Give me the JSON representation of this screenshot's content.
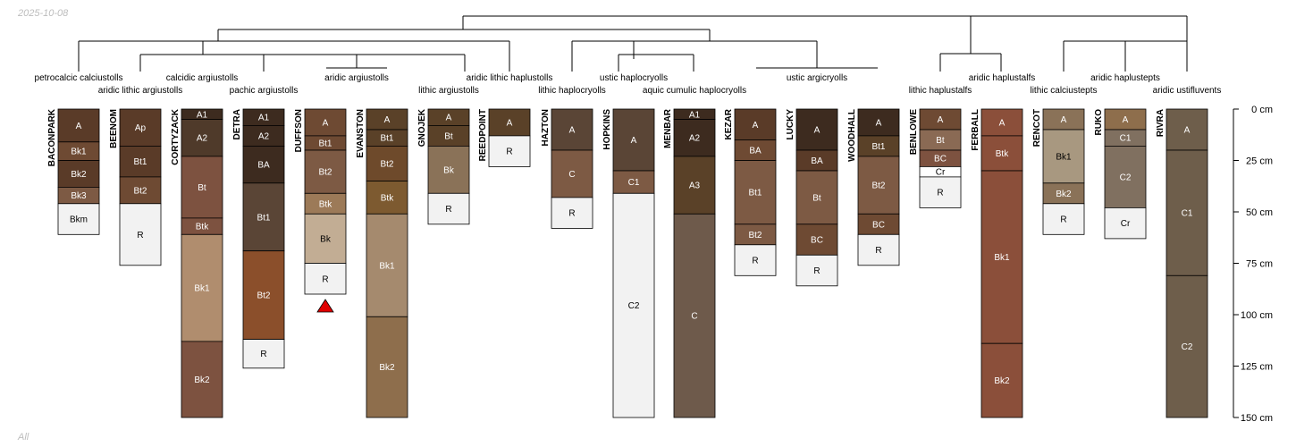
{
  "date_label": "2025-10-08",
  "footer_label": "All",
  "chart_data": {
    "type": "soil-profile-sketch",
    "depth_unit": "cm",
    "depth_axis": {
      "ticks": [
        0,
        25,
        50,
        75,
        100,
        125,
        150
      ],
      "range": [
        0,
        150
      ]
    },
    "profiles": [
      {
        "name": "BACONPARK",
        "taxon": "petrocalcic calciustolls",
        "horizons": [
          {
            "name": "A",
            "top": 0,
            "bottom": 16,
            "color": "#5a3b28"
          },
          {
            "name": "Bk1",
            "top": 16,
            "bottom": 25,
            "color": "#6e4a33"
          },
          {
            "name": "Bk2",
            "top": 25,
            "bottom": 38,
            "color": "#5a3b28"
          },
          {
            "name": "Bk3",
            "top": 38,
            "bottom": 46,
            "color": "#7d5a44"
          },
          {
            "name": "Bkm",
            "top": 46,
            "bottom": 61,
            "color": "#f2f2f2"
          }
        ]
      },
      {
        "name": "BEENOM",
        "taxon": "aridic lithic argiustolls",
        "horizons": [
          {
            "name": "Ap",
            "top": 0,
            "bottom": 18,
            "color": "#5a3b28"
          },
          {
            "name": "Bt1",
            "top": 18,
            "bottom": 33,
            "color": "#5a3b28"
          },
          {
            "name": "Bt2",
            "top": 33,
            "bottom": 46,
            "color": "#6e4a33"
          },
          {
            "name": "R",
            "top": 46,
            "bottom": 76,
            "color": "#f2f2f2"
          }
        ]
      },
      {
        "name": "CORTYZACK",
        "taxon": "calcidic argiustolls",
        "horizons": [
          {
            "name": "A1",
            "top": 0,
            "bottom": 5,
            "color": "#3d2b1f"
          },
          {
            "name": "A2",
            "top": 5,
            "bottom": 23,
            "color": "#4f3a2a"
          },
          {
            "name": "Bt",
            "top": 23,
            "bottom": 53,
            "color": "#7d5240"
          },
          {
            "name": "Btk",
            "top": 53,
            "bottom": 61,
            "color": "#7d5240"
          },
          {
            "name": "Bk1",
            "top": 61,
            "bottom": 113,
            "color": "#b08d6e"
          },
          {
            "name": "Bk2",
            "top": 113,
            "bottom": 150,
            "color": "#7d5240"
          }
        ]
      },
      {
        "name": "DETRA",
        "taxon": "pachic argiustolls",
        "horizons": [
          {
            "name": "A1",
            "top": 0,
            "bottom": 8,
            "color": "#3d2b1f"
          },
          {
            "name": "A2",
            "top": 8,
            "bottom": 18,
            "color": "#3d2b1f"
          },
          {
            "name": "BA",
            "top": 18,
            "bottom": 36,
            "color": "#3d2b1f"
          },
          {
            "name": "Bt1",
            "top": 36,
            "bottom": 69,
            "color": "#5a4536"
          },
          {
            "name": "Bt2",
            "top": 69,
            "bottom": 112,
            "color": "#8b4f2b"
          },
          {
            "name": "R",
            "top": 112,
            "bottom": 126,
            "color": "#f2f2f2"
          }
        ]
      },
      {
        "name": "DUFFSON",
        "taxon": "aridic argiustolls",
        "horizons": [
          {
            "name": "A",
            "top": 0,
            "bottom": 13,
            "color": "#6e4a33"
          },
          {
            "name": "Bt1",
            "top": 13,
            "bottom": 20,
            "color": "#6e4a33"
          },
          {
            "name": "Bt2",
            "top": 20,
            "bottom": 41,
            "color": "#7d5a44"
          },
          {
            "name": "Btk",
            "top": 41,
            "bottom": 51,
            "color": "#9c7a58"
          },
          {
            "name": "Bk",
            "top": 51,
            "bottom": 75,
            "color": "#c2ad94"
          },
          {
            "name": "R",
            "top": 75,
            "bottom": 90,
            "color": "#f2f2f2"
          }
        ]
      },
      {
        "name": "EVANSTON",
        "taxon": "aridic argiustolls",
        "horizons": [
          {
            "name": "A",
            "top": 0,
            "bottom": 10,
            "color": "#5a4128"
          },
          {
            "name": "Bt1",
            "top": 10,
            "bottom": 18,
            "color": "#5a4128"
          },
          {
            "name": "Bt2",
            "top": 18,
            "bottom": 35,
            "color": "#6e4a2b"
          },
          {
            "name": "Btk",
            "top": 35,
            "bottom": 51,
            "color": "#7d5a30"
          },
          {
            "name": "Bk1",
            "top": 51,
            "bottom": 101,
            "color": "#a58a6e"
          },
          {
            "name": "Bk2",
            "top": 101,
            "bottom": 150,
            "color": "#8e6e4c"
          }
        ]
      },
      {
        "name": "GNOJEK",
        "taxon": "lithic argiustolls",
        "horizons": [
          {
            "name": "A",
            "top": 0,
            "bottom": 8,
            "color": "#5a4128"
          },
          {
            "name": "Bt",
            "top": 8,
            "bottom": 18,
            "color": "#5a4128"
          },
          {
            "name": "Bk",
            "top": 18,
            "bottom": 41,
            "color": "#8a7258"
          },
          {
            "name": "R",
            "top": 41,
            "bottom": 56,
            "color": "#f2f2f2"
          }
        ]
      },
      {
        "name": "REEDPOINT",
        "taxon": "aridic lithic haplustolls",
        "horizons": [
          {
            "name": "A",
            "top": 0,
            "bottom": 13,
            "color": "#5a4128"
          },
          {
            "name": "R",
            "top": 13,
            "bottom": 28,
            "color": "#f2f2f2"
          }
        ]
      },
      {
        "name": "HAZTON",
        "taxon": "lithic haplocryolls",
        "horizons": [
          {
            "name": "A",
            "top": 0,
            "bottom": 20,
            "color": "#5a4536"
          },
          {
            "name": "C",
            "top": 20,
            "bottom": 43,
            "color": "#7d5a44"
          },
          {
            "name": "R",
            "top": 43,
            "bottom": 58,
            "color": "#f2f2f2"
          }
        ]
      },
      {
        "name": "HOPKINS",
        "taxon": "ustic haplocryolls",
        "horizons": [
          {
            "name": "A",
            "top": 0,
            "bottom": 30,
            "color": "#5a4536"
          },
          {
            "name": "C1",
            "top": 30,
            "bottom": 41,
            "color": "#7d5a44"
          },
          {
            "name": "C2",
            "top": 41,
            "bottom": 150,
            "color": "#f2f2f2"
          }
        ]
      },
      {
        "name": "MENBAR",
        "taxon": "aquic cumulic haplocryolls",
        "horizons": [
          {
            "name": "A1",
            "top": 0,
            "bottom": 5,
            "color": "#3d2b1f"
          },
          {
            "name": "A2",
            "top": 5,
            "bottom": 23,
            "color": "#3d2b1f"
          },
          {
            "name": "A3",
            "top": 23,
            "bottom": 51,
            "color": "#5a4128"
          },
          {
            "name": "C",
            "top": 51,
            "bottom": 150,
            "color": "#6e5a4b"
          }
        ]
      },
      {
        "name": "KEZAR",
        "taxon": "ustic argicryolls",
        "horizons": [
          {
            "name": "A",
            "top": 0,
            "bottom": 15,
            "color": "#5a3b28"
          },
          {
            "name": "BA",
            "top": 15,
            "bottom": 25,
            "color": "#6e4a33"
          },
          {
            "name": "Bt1",
            "top": 25,
            "bottom": 56,
            "color": "#7d5a44"
          },
          {
            "name": "Bt2",
            "top": 56,
            "bottom": 66,
            "color": "#7d5a44"
          },
          {
            "name": "R",
            "top": 66,
            "bottom": 81,
            "color": "#f2f2f2"
          }
        ]
      },
      {
        "name": "LUCKY",
        "taxon": "ustic argicryolls",
        "horizons": [
          {
            "name": "A",
            "top": 0,
            "bottom": 20,
            "color": "#3d2b1f"
          },
          {
            "name": "BA",
            "top": 20,
            "bottom": 30,
            "color": "#5a3b28"
          },
          {
            "name": "Bt",
            "top": 30,
            "bottom": 56,
            "color": "#7d5a44"
          },
          {
            "name": "BC",
            "top": 56,
            "bottom": 71,
            "color": "#6e4a33"
          },
          {
            "name": "R",
            "top": 71,
            "bottom": 86,
            "color": "#f2f2f2"
          }
        ]
      },
      {
        "name": "WOODHALL",
        "taxon": "ustic argicryolls",
        "horizons": [
          {
            "name": "A",
            "top": 0,
            "bottom": 13,
            "color": "#3d2b1f"
          },
          {
            "name": "Bt1",
            "top": 13,
            "bottom": 23,
            "color": "#5a4128"
          },
          {
            "name": "Bt2",
            "top": 23,
            "bottom": 51,
            "color": "#7d5a44"
          },
          {
            "name": "BC",
            "top": 51,
            "bottom": 61,
            "color": "#6e4a33"
          },
          {
            "name": "R",
            "top": 61,
            "bottom": 76,
            "color": "#f2f2f2"
          }
        ]
      },
      {
        "name": "BENLOWE",
        "taxon": "lithic haplustalfs",
        "horizons": [
          {
            "name": "A",
            "top": 0,
            "bottom": 10,
            "color": "#6e4a33"
          },
          {
            "name": "Bt",
            "top": 10,
            "bottom": 20,
            "color": "#8a6a54"
          },
          {
            "name": "BC",
            "top": 20,
            "bottom": 28,
            "color": "#7d5240"
          },
          {
            "name": "Cr",
            "top": 28,
            "bottom": 33,
            "color": "#ffffff"
          },
          {
            "name": "R",
            "top": 33,
            "bottom": 48,
            "color": "#f2f2f2"
          }
        ]
      },
      {
        "name": "FERBALL",
        "taxon": "aridic haplustalfs",
        "horizons": [
          {
            "name": "A",
            "top": 0,
            "bottom": 13,
            "color": "#8b4f3a"
          },
          {
            "name": "Btk",
            "top": 13,
            "bottom": 30,
            "color": "#8b4f3a"
          },
          {
            "name": "Bk1",
            "top": 30,
            "bottom": 114,
            "color": "#8b4f3a"
          },
          {
            "name": "Bk2",
            "top": 114,
            "bottom": 150,
            "color": "#8b4f3a"
          }
        ]
      },
      {
        "name": "RENCOT",
        "taxon": "lithic calciustepts",
        "horizons": [
          {
            "name": "A",
            "top": 0,
            "bottom": 10,
            "color": "#8a7258"
          },
          {
            "name": "Bk1",
            "top": 10,
            "bottom": 36,
            "color": "#a89880"
          },
          {
            "name": "Bk2",
            "top": 36,
            "bottom": 46,
            "color": "#8a7258"
          },
          {
            "name": "R",
            "top": 46,
            "bottom": 61,
            "color": "#f2f2f2"
          }
        ]
      },
      {
        "name": "RUKO",
        "taxon": "aridic haplustepts",
        "horizons": [
          {
            "name": "A",
            "top": 0,
            "bottom": 10,
            "color": "#8e6e4c"
          },
          {
            "name": "C1",
            "top": 10,
            "bottom": 18,
            "color": "#807060"
          },
          {
            "name": "C2",
            "top": 18,
            "bottom": 48,
            "color": "#807060"
          },
          {
            "name": "Cr",
            "top": 48,
            "bottom": 63,
            "color": "#f2f2f2"
          }
        ]
      },
      {
        "name": "RIVRA",
        "taxon": "aridic ustifluvents",
        "horizons": [
          {
            "name": "A",
            "top": 0,
            "bottom": 20,
            "color": "#6e5e4b"
          },
          {
            "name": "C1",
            "top": 20,
            "bottom": 81,
            "color": "#6e5e4b"
          },
          {
            "name": "C2",
            "top": 81,
            "bottom": 150,
            "color": "#6e5e4b"
          }
        ]
      }
    ]
  }
}
